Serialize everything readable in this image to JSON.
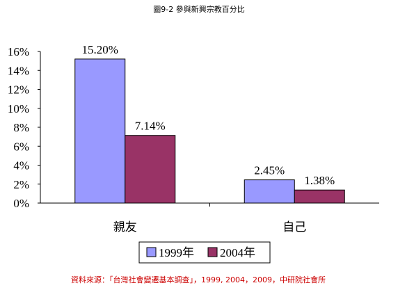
{
  "chart_data": {
    "type": "bar",
    "title": "圖9-2 參與新興宗教百分比",
    "categories": [
      "親友",
      "自己"
    ],
    "series": [
      {
        "name": "1999年",
        "color": "#9999ff",
        "values": [
          15.2,
          2.45
        ],
        "labels": [
          "15.20%",
          "2.45%"
        ]
      },
      {
        "name": "2004年",
        "color": "#993366",
        "values": [
          7.14,
          1.38
        ],
        "labels": [
          "7.14%",
          "1.38%"
        ]
      }
    ],
    "yticks": [
      "0%",
      "2%",
      "4%",
      "6%",
      "8%",
      "10%",
      "12%",
      "14%",
      "16%"
    ],
    "ylim": [
      0,
      16
    ],
    "grid": false,
    "legend_position": "bottom",
    "source": "資料來源：「台灣社會變遷基本調查」，1999, 2004，2009，中研院社會所",
    "source_color": "#cc0000"
  }
}
